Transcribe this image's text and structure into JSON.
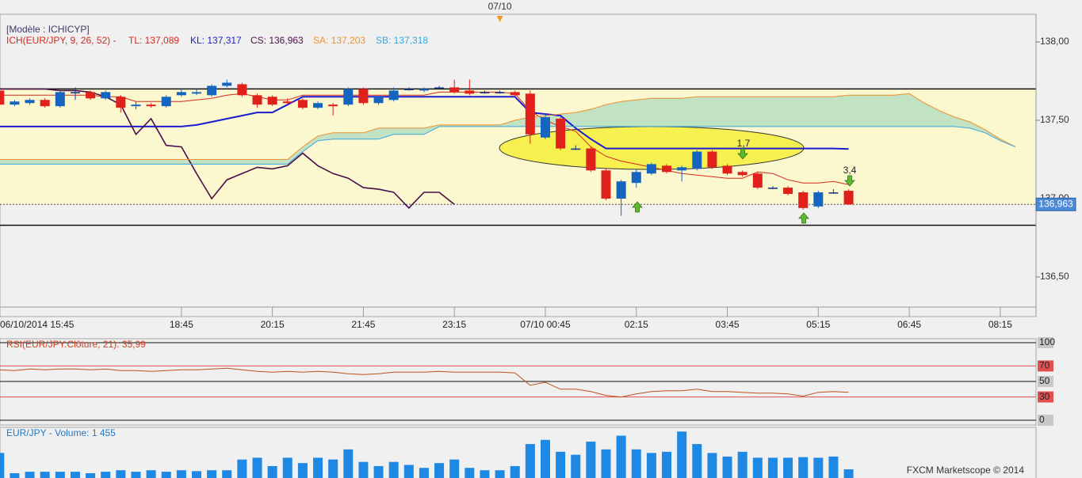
{
  "chart_data": [
    {
      "type": "candlestick",
      "legend_title": "[Modèle : ICHICYP]",
      "indicator": "ICH(EUR/JPY, 9, 26, 52) -",
      "date_marker": "07/10",
      "categories": [
        "06/10/2014 15:45",
        null,
        null,
        null,
        null,
        null,
        null,
        null,
        null,
        null,
        null,
        null,
        "18:45",
        null,
        null,
        null,
        null,
        null,
        "20:15",
        null,
        null,
        null,
        null,
        null,
        "21:45",
        null,
        null,
        null,
        null,
        null,
        "23:15",
        null,
        null,
        null,
        null,
        null,
        "07/10 00:45",
        null,
        null,
        null,
        null,
        null,
        "02:15",
        null,
        null,
        null,
        null,
        null,
        "03:45",
        null,
        null,
        null,
        null,
        null,
        "05:15",
        null,
        null,
        null,
        null,
        null,
        "06:45",
        null,
        null,
        null,
        null,
        null,
        "08:15",
        null
      ],
      "open": [
        137.69,
        137.6,
        137.61,
        137.63,
        137.59,
        137.68,
        137.68,
        137.64,
        137.65,
        137.59,
        137.6,
        137.59,
        137.66,
        137.67,
        137.66,
        137.72,
        137.73,
        137.66,
        137.65,
        137.62,
        137.63,
        137.58,
        137.6,
        137.6,
        137.7,
        137.61,
        137.63,
        137.7,
        137.69,
        137.71,
        137.71,
        137.69,
        137.68,
        137.68,
        137.68,
        137.67,
        137.39,
        137.51,
        137.32,
        137.32,
        137.18,
        137.0,
        137.1,
        137.16,
        137.21,
        137.18,
        137.19,
        137.3,
        137.21,
        137.17,
        137.16,
        137.07,
        137.07,
        137.04,
        136.95,
        137.04,
        137.05,
        null,
        null,
        null,
        null,
        null,
        null,
        null,
        null,
        null,
        null,
        null
      ],
      "high": [
        137.7,
        137.63,
        137.64,
        137.64,
        137.69,
        137.71,
        137.69,
        137.69,
        137.66,
        137.62,
        137.61,
        137.66,
        137.7,
        137.7,
        137.73,
        137.76,
        137.74,
        137.67,
        137.66,
        137.64,
        137.64,
        137.62,
        137.61,
        137.71,
        137.71,
        137.66,
        137.71,
        137.71,
        137.71,
        137.72,
        137.76,
        137.76,
        137.69,
        137.69,
        137.69,
        137.69,
        137.54,
        137.52,
        137.34,
        137.33,
        137.19,
        137.12,
        137.19,
        137.23,
        137.22,
        137.21,
        137.31,
        137.31,
        137.22,
        137.18,
        137.17,
        137.08,
        137.08,
        137.05,
        137.05,
        137.06,
        137.06,
        null,
        null,
        null,
        null,
        null,
        null,
        null,
        null,
        null,
        null,
        null
      ],
      "low": [
        137.59,
        137.59,
        137.6,
        137.58,
        137.58,
        137.63,
        137.63,
        137.63,
        137.55,
        137.57,
        137.58,
        137.58,
        137.65,
        137.66,
        137.65,
        137.71,
        137.65,
        137.58,
        137.59,
        137.6,
        137.57,
        137.57,
        137.53,
        137.59,
        137.6,
        137.6,
        137.62,
        137.69,
        137.68,
        137.7,
        137.67,
        137.66,
        137.67,
        137.67,
        137.65,
        137.35,
        137.38,
        137.31,
        137.31,
        137.17,
        136.99,
        136.89,
        137.07,
        137.15,
        137.16,
        137.11,
        137.18,
        137.19,
        137.15,
        137.14,
        137.06,
        137.06,
        137.02,
        136.93,
        136.94,
        137.03,
        136.96,
        null,
        null,
        null,
        null,
        null,
        null,
        null,
        null,
        null,
        null,
        null
      ],
      "close": [
        137.6,
        137.62,
        137.63,
        137.59,
        137.68,
        137.68,
        137.64,
        137.68,
        137.58,
        137.6,
        137.59,
        137.65,
        137.68,
        137.68,
        137.72,
        137.74,
        137.66,
        137.6,
        137.6,
        137.61,
        137.58,
        137.61,
        137.59,
        137.7,
        137.61,
        137.65,
        137.69,
        137.7,
        137.7,
        137.71,
        137.68,
        137.67,
        137.68,
        137.68,
        137.66,
        137.41,
        137.52,
        137.32,
        137.32,
        137.18,
        137.0,
        137.11,
        137.17,
        137.22,
        137.17,
        137.2,
        137.3,
        137.2,
        137.16,
        137.15,
        137.07,
        137.07,
        137.03,
        136.94,
        137.04,
        137.04,
        136.963,
        null,
        null,
        null,
        null,
        null,
        null,
        null,
        null,
        null,
        null,
        null
      ],
      "up_color": "#1565c0",
      "down_color": "#e0201b",
      "doji_color": "#1a3a8a",
      "series": [
        {
          "name": "TL: 137,089",
          "color": "#d42a1e",
          "values": [
            137.66,
            137.66,
            137.66,
            137.66,
            137.66,
            137.66,
            137.66,
            137.65,
            137.65,
            137.62,
            137.62,
            137.62,
            137.62,
            137.63,
            137.64,
            137.66,
            137.67,
            137.65,
            137.63,
            137.63,
            137.66,
            137.66,
            137.66,
            137.66,
            137.66,
            137.66,
            137.66,
            137.66,
            137.66,
            137.68,
            137.68,
            137.68,
            137.68,
            137.68,
            137.67,
            137.56,
            137.5,
            137.46,
            137.43,
            137.33,
            137.27,
            137.24,
            137.22,
            137.2,
            137.18,
            137.16,
            137.15,
            137.14,
            137.13,
            137.13,
            137.17,
            137.16,
            137.12,
            137.1,
            137.1,
            137.11,
            137.089,
            null,
            null,
            null,
            null,
            null,
            null,
            null,
            null,
            null,
            null,
            null
          ]
        },
        {
          "name": "KL: 137,317",
          "color": "#1c1cd0",
          "values": [
            137.46,
            137.46,
            137.46,
            137.46,
            137.46,
            137.46,
            137.46,
            137.46,
            137.46,
            137.46,
            137.46,
            137.46,
            137.46,
            137.47,
            137.49,
            137.51,
            137.53,
            137.55,
            137.55,
            137.6,
            137.65,
            137.65,
            137.65,
            137.65,
            137.65,
            137.65,
            137.65,
            137.65,
            137.65,
            137.65,
            137.65,
            137.65,
            137.65,
            137.65,
            137.65,
            137.55,
            137.54,
            137.53,
            137.45,
            137.38,
            137.32,
            137.32,
            137.32,
            137.32,
            137.32,
            137.32,
            137.32,
            137.32,
            137.32,
            137.32,
            137.32,
            137.32,
            137.32,
            137.32,
            137.32,
            137.32,
            137.317,
            null,
            null,
            null,
            null,
            null,
            null,
            null,
            null,
            null,
            null,
            null
          ]
        },
        {
          "name": "CS: 136,963",
          "color": "#4a0f4a",
          "values": [
            137.7,
            137.7,
            137.7,
            137.7,
            137.69,
            137.69,
            137.68,
            137.65,
            137.6,
            137.41,
            137.51,
            137.34,
            137.33,
            137.16,
            137.0,
            137.12,
            137.16,
            137.2,
            137.19,
            137.21,
            137.29,
            137.21,
            137.16,
            137.13,
            137.07,
            137.06,
            137.04,
            136.94,
            137.04,
            137.04,
            136.963,
            null,
            null,
            null,
            null,
            null,
            null,
            null,
            null,
            null,
            null,
            null,
            null,
            null,
            null,
            null,
            null,
            null,
            null,
            null,
            null,
            null,
            null,
            null,
            null,
            null,
            null,
            null,
            null,
            null,
            null,
            null,
            null,
            null,
            null,
            null,
            null,
            null
          ]
        },
        {
          "name": "SA: 137,203",
          "color": "#f0902e",
          "values": [
            137.25,
            137.25,
            137.25,
            137.25,
            137.25,
            137.25,
            137.25,
            137.25,
            137.25,
            137.25,
            137.25,
            137.25,
            137.25,
            137.25,
            137.25,
            137.25,
            137.25,
            137.25,
            137.25,
            137.25,
            137.33,
            137.4,
            137.42,
            137.42,
            137.42,
            137.45,
            137.45,
            137.45,
            137.45,
            137.47,
            137.47,
            137.47,
            137.47,
            137.47,
            137.5,
            137.52,
            137.53,
            137.54,
            137.55,
            137.57,
            137.6,
            137.62,
            137.63,
            137.64,
            137.64,
            137.64,
            137.65,
            137.65,
            137.65,
            137.65,
            137.65,
            137.65,
            137.65,
            137.65,
            137.65,
            137.65,
            137.66,
            137.66,
            137.66,
            137.66,
            137.67,
            137.61,
            137.56,
            137.52,
            137.49,
            137.44,
            137.38,
            137.33
          ]
        },
        {
          "name": "SB: 137,318",
          "color": "#3ba6dd",
          "values": [
            137.22,
            137.22,
            137.22,
            137.22,
            137.22,
            137.22,
            137.22,
            137.22,
            137.22,
            137.22,
            137.22,
            137.22,
            137.22,
            137.22,
            137.22,
            137.22,
            137.22,
            137.22,
            137.22,
            137.22,
            137.3,
            137.37,
            137.38,
            137.38,
            137.38,
            137.38,
            137.41,
            137.41,
            137.41,
            137.46,
            137.46,
            137.46,
            137.46,
            137.46,
            137.46,
            137.46,
            137.46,
            137.46,
            137.46,
            137.46,
            137.46,
            137.46,
            137.46,
            137.46,
            137.46,
            137.46,
            137.46,
            137.46,
            137.46,
            137.46,
            137.46,
            137.46,
            137.46,
            137.46,
            137.46,
            137.46,
            137.46,
            137.46,
            137.46,
            137.46,
            137.46,
            137.46,
            137.46,
            137.46,
            137.45,
            137.42,
            137.37,
            137.33
          ]
        }
      ],
      "cloud_color": "#a9d8bf",
      "levels": [
        137.7,
        136.83
      ],
      "last_price": {
        "value": 136.963,
        "label": "136,963"
      },
      "signal_labels": [
        "1,7",
        "3,4"
      ],
      "ylim": [
        136.247,
        138.177
      ],
      "yticks": [
        {
          "value": 136.5,
          "label": "136,50"
        },
        {
          "value": 137,
          "label": "137,00"
        },
        {
          "value": 137.5,
          "label": "137,50"
        },
        {
          "value": 138,
          "label": "138,00"
        }
      ]
    },
    {
      "type": "line",
      "title": "RSI(EUR/JPY.Clôture, 21): 35,99",
      "color": "#c0501e",
      "values": [
        65,
        64,
        66,
        65,
        66,
        66,
        65,
        66,
        64,
        64,
        63,
        64,
        65,
        65,
        66,
        67,
        65,
        63,
        62,
        63,
        62,
        63,
        62,
        60,
        59,
        60,
        62,
        62,
        62,
        63,
        62,
        62,
        62,
        62,
        61,
        45,
        49,
        40,
        40,
        37,
        32,
        30,
        34,
        37,
        38,
        38,
        40,
        37,
        37,
        36,
        35,
        35,
        34,
        31,
        36,
        37,
        35.99,
        null,
        null,
        null,
        null,
        null,
        null,
        null,
        null,
        null,
        null,
        null
      ],
      "levels": [
        30,
        70
      ],
      "level_color": "#e05050",
      "ylim": [
        -6.1,
        105.1
      ],
      "yticks": [
        0,
        30,
        50,
        70,
        100
      ]
    },
    {
      "type": "bar",
      "title": "EUR/JPY - Volume: 1 455",
      "color": "#1e88e5",
      "values": [
        4200,
        800,
        1050,
        1050,
        1050,
        1050,
        800,
        1050,
        1300,
        1050,
        1300,
        1050,
        1300,
        1150,
        1300,
        1300,
        3100,
        3400,
        2000,
        3400,
        2500,
        3400,
        3100,
        4800,
        2700,
        2000,
        2700,
        2200,
        1700,
        2500,
        3100,
        1700,
        1300,
        1300,
        2000,
        5700,
        6400,
        4400,
        3900,
        6100,
        4800,
        7100,
        4800,
        4200,
        4400,
        7800,
        5700,
        4200,
        3600,
        4400,
        3400,
        3400,
        3400,
        3500,
        3400,
        3600,
        1455,
        null,
        null,
        null,
        null,
        null,
        null,
        null,
        null,
        null,
        null,
        null
      ],
      "ylim": [
        0,
        8500
      ]
    }
  ],
  "footer": "FXCM Marketscope © 2014"
}
